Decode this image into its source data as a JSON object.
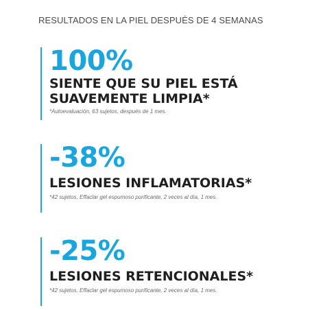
{
  "header": "RESULTADOS EN LA PIEL DESPUÉS DE 4 SEMANAS",
  "accent_color": "#1aa6dd",
  "stats": [
    {
      "value": "100%",
      "label_lines": [
        "SIENTE QUE SU PIEL ESTÁ",
        "SUAVEMENTE LIMPIA*"
      ],
      "note": "*Autoevaluación, 63 sujetos, después de 1 mes."
    },
    {
      "value": "-38%",
      "label_lines": [
        "LESIONES INFLAMATORIAS*"
      ],
      "note": "*42 sujetos, Effaclar gel espumoso purificante, 2 veces al día, 1 mes."
    },
    {
      "value": "-25%",
      "label_lines": [
        "LESIONES RETENCIONALES*"
      ],
      "note": "*42 sujetos, Effaclar gel espumoso purificante, 2 veces al día, 1 mes."
    }
  ]
}
